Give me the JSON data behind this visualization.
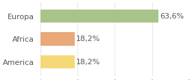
{
  "categories": [
    "America",
    "Africa",
    "Europa"
  ],
  "values": [
    18.2,
    18.2,
    63.6
  ],
  "bar_colors": [
    "#f5d878",
    "#e8a878",
    "#a8c48a"
  ],
  "labels": [
    "18,2%",
    "18,2%",
    "63,6%"
  ],
  "xlim": [
    0,
    80
  ],
  "background_color": "#ffffff",
  "label_fontsize": 8.0,
  "tick_fontsize": 8.0
}
